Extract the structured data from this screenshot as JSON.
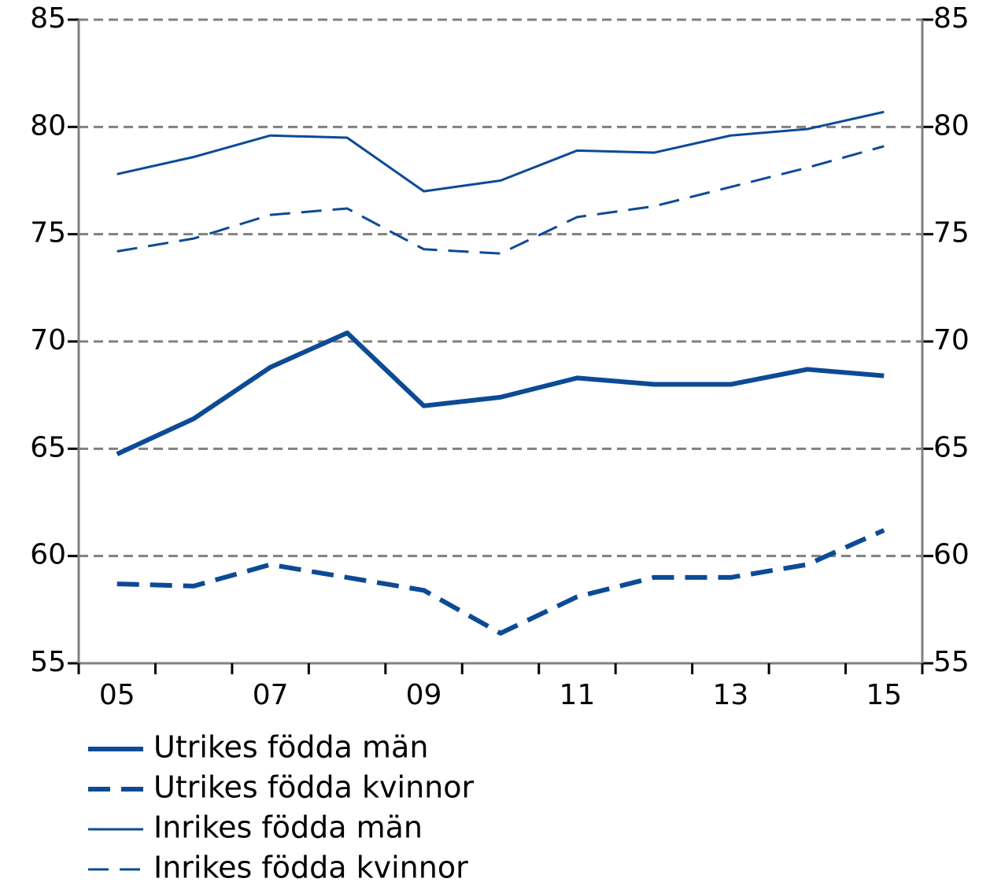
{
  "chart_data": {
    "type": "line",
    "categories": [
      "05",
      null,
      "07",
      null,
      "09",
      null,
      "11",
      null,
      "13",
      null,
      "15"
    ],
    "series": [
      {
        "name": "Utrikes födda män",
        "color": "#0d4a96",
        "dashed": false,
        "weight": "thick",
        "values": [
          64.75,
          66.4,
          68.8,
          70.4,
          67.0,
          67.4,
          68.3,
          68.0,
          68.0,
          68.7,
          68.4
        ]
      },
      {
        "name": "Utrikes födda kvinnor",
        "color": "#0d4a96",
        "dashed": true,
        "weight": "thick",
        "values": [
          58.7,
          58.6,
          59.6,
          59.0,
          58.4,
          56.4,
          58.1,
          59.0,
          59.0,
          59.6,
          61.2
        ]
      },
      {
        "name": "Inrikes födda män",
        "color": "#0d4a96",
        "dashed": false,
        "weight": "thin",
        "values": [
          77.8,
          78.6,
          79.6,
          79.5,
          77.0,
          77.5,
          78.9,
          78.8,
          79.6,
          79.9,
          80.7
        ]
      },
      {
        "name": "Inrikes födda kvinnor",
        "color": "#0d4a96",
        "dashed": true,
        "weight": "thin",
        "values": [
          74.2,
          74.8,
          75.9,
          76.2,
          74.3,
          74.1,
          75.8,
          76.3,
          77.2,
          78.1,
          79.1
        ]
      }
    ],
    "ylim": [
      55,
      85
    ],
    "yticks": [
      55,
      60,
      65,
      70,
      75,
      80,
      85
    ],
    "y2lim": [
      55,
      85
    ],
    "y2ticks": [
      55,
      60,
      65,
      70,
      75,
      80,
      85
    ],
    "grid": true,
    "legend": "bottom-left"
  }
}
